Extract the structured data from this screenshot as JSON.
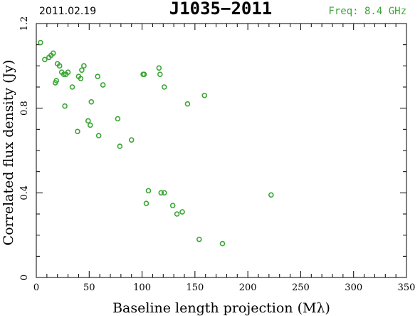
{
  "header": {
    "date": "2011.02.19",
    "source": "J1035−2011",
    "frequency": "Freq: 8.4 GHz"
  },
  "colors": {
    "points": "#3aa635",
    "frequency_text": "#3aa635",
    "axes": "#000000"
  },
  "chart_data": {
    "type": "scatter",
    "title": "J1035−2011",
    "xlabel": "Baseline length projection (Mλ)",
    "ylabel": "Correlated flux density (Jy)",
    "xlim": [
      0,
      350
    ],
    "ylim": [
      0,
      1.2
    ],
    "x_ticks": [
      0,
      50,
      100,
      150,
      200,
      250,
      300,
      350
    ],
    "y_ticks": [
      0,
      0.4,
      0.8,
      1.2
    ],
    "y_tick_labels": [
      "0",
      "0.4",
      "0.8",
      "1.2"
    ],
    "grid": false,
    "series": [
      {
        "x": [
          4,
          8,
          12,
          14,
          16,
          18,
          19,
          20,
          22,
          24,
          26,
          27,
          28,
          30,
          34,
          39,
          40,
          42,
          43,
          45,
          49,
          51,
          52,
          58,
          59,
          63,
          77,
          79,
          90,
          101,
          102,
          104,
          106,
          116,
          117,
          118,
          121,
          121,
          129,
          133,
          138,
          143,
          154,
          159,
          176,
          222
        ],
        "y": [
          1.11,
          1.03,
          1.04,
          1.05,
          1.06,
          0.92,
          0.93,
          1.01,
          1.0,
          0.97,
          0.96,
          0.81,
          0.96,
          0.97,
          0.9,
          0.69,
          0.95,
          0.94,
          0.98,
          1.0,
          0.74,
          0.72,
          0.83,
          0.95,
          0.67,
          0.91,
          0.75,
          0.62,
          0.65,
          0.96,
          0.96,
          0.35,
          0.41,
          0.99,
          0.96,
          0.4,
          0.9,
          0.4,
          0.34,
          0.3,
          0.31,
          0.82,
          0.18,
          0.86,
          0.16,
          0.39
        ]
      }
    ]
  }
}
